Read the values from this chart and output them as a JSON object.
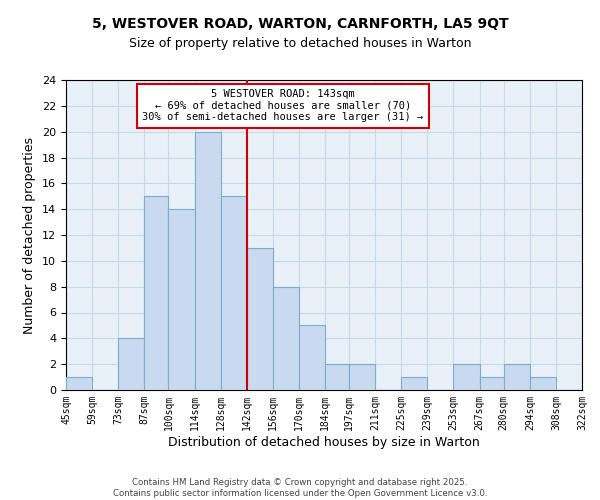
{
  "title1": "5, WESTOVER ROAD, WARTON, CARNFORTH, LA5 9QT",
  "title2": "Size of property relative to detached houses in Warton",
  "xlabel": "Distribution of detached houses by size in Warton",
  "ylabel": "Number of detached properties",
  "bin_edges": [
    45,
    59,
    73,
    87,
    100,
    114,
    128,
    142,
    156,
    170,
    184,
    197,
    211,
    225,
    239,
    253,
    267,
    280,
    294,
    308,
    322
  ],
  "bin_counts": [
    1,
    0,
    4,
    15,
    14,
    20,
    15,
    11,
    8,
    5,
    2,
    2,
    0,
    1,
    0,
    2,
    1,
    2,
    1,
    0
  ],
  "bar_color": "#c9d9ee",
  "bar_edge_color": "#7aadd4",
  "vline_x": 142,
  "vline_color": "#cc0000",
  "annotation_title": "5 WESTOVER ROAD: 143sqm",
  "annotation_line1": "← 69% of detached houses are smaller (70)",
  "annotation_line2": "30% of semi-detached houses are larger (31) →",
  "annotation_box_edgecolor": "#cc0000",
  "annotation_box_fill": "#ffffff",
  "grid_color": "#c8d8e8",
  "plot_bg_color": "#e8f0f8",
  "fig_bg_color": "#ffffff",
  "footer1": "Contains HM Land Registry data © Crown copyright and database right 2025.",
  "footer2": "Contains public sector information licensed under the Open Government Licence v3.0.",
  "xlim": [
    45,
    322
  ],
  "ylim": [
    0,
    24
  ],
  "yticks": [
    0,
    2,
    4,
    6,
    8,
    10,
    12,
    14,
    16,
    18,
    20,
    22,
    24
  ],
  "xtick_labels": [
    "45sqm",
    "59sqm",
    "73sqm",
    "87sqm",
    "100sqm",
    "114sqm",
    "128sqm",
    "142sqm",
    "156sqm",
    "170sqm",
    "184sqm",
    "197sqm",
    "211sqm",
    "225sqm",
    "239sqm",
    "253sqm",
    "267sqm",
    "280sqm",
    "294sqm",
    "308sqm",
    "322sqm"
  ]
}
